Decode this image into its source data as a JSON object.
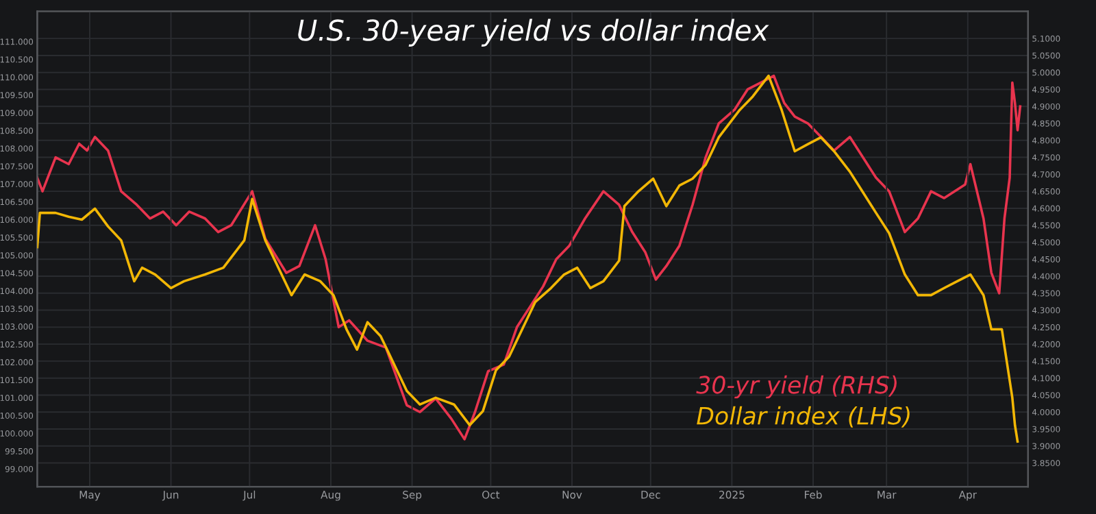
{
  "chart_data": {
    "type": "line",
    "title": "U.S. 30-year yield vs dollar index",
    "xlim": [
      "2024-04-11",
      "2025-04-24"
    ],
    "xticks": [
      {
        "value": "2024-05-01",
        "label": "May"
      },
      {
        "value": "2024-06-01",
        "label": "Jun"
      },
      {
        "value": "2024-07-01",
        "label": "Jul"
      },
      {
        "value": "2024-08-01",
        "label": "Aug"
      },
      {
        "value": "2024-09-01",
        "label": "Sep"
      },
      {
        "value": "2024-10-01",
        "label": "Oct"
      },
      {
        "value": "2024-11-01",
        "label": "Nov"
      },
      {
        "value": "2024-12-01",
        "label": "Dec"
      },
      {
        "value": "2025-01-01",
        "label": "2025"
      },
      {
        "value": "2025-02-01",
        "label": "Feb"
      },
      {
        "value": "2025-03-01",
        "label": "Mar"
      },
      {
        "value": "2025-04-01",
        "label": "Apr"
      }
    ],
    "ylim": [
      98.5,
      111.85
    ],
    "yticks": [
      {
        "value": 99,
        "label": "99.000"
      },
      {
        "value": 99.5,
        "label": "99.500"
      },
      {
        "value": 100,
        "label": "100.000"
      },
      {
        "value": 100.5,
        "label": "100.500"
      },
      {
        "value": 101,
        "label": "101.000"
      },
      {
        "value": 101.5,
        "label": "101.500"
      },
      {
        "value": 102,
        "label": "102.000"
      },
      {
        "value": 102.5,
        "label": "102.500"
      },
      {
        "value": 103,
        "label": "103.000"
      },
      {
        "value": 103.5,
        "label": "103.500"
      },
      {
        "value": 104,
        "label": "104.000"
      },
      {
        "value": 104.5,
        "label": "104.500"
      },
      {
        "value": 105,
        "label": "105.000"
      },
      {
        "value": 105.5,
        "label": "105.500"
      },
      {
        "value": 106,
        "label": "106.000"
      },
      {
        "value": 106.5,
        "label": "106.500"
      },
      {
        "value": 107,
        "label": "107.000"
      },
      {
        "value": 107.5,
        "label": "107.500"
      },
      {
        "value": 108,
        "label": "108.000"
      },
      {
        "value": 108.5,
        "label": "108.500"
      },
      {
        "value": 109,
        "label": "109.000"
      },
      {
        "value": 109.5,
        "label": "109.500"
      },
      {
        "value": 110,
        "label": "110.000"
      },
      {
        "value": 110.5,
        "label": "110.500"
      },
      {
        "value": 111,
        "label": "111.000"
      }
    ],
    "y2lim": [
      3.78,
      5.18
    ],
    "y2ticks": [
      {
        "value": 3.85,
        "label": "3.8500"
      },
      {
        "value": 3.9,
        "label": "3.9000"
      },
      {
        "value": 3.95,
        "label": "3.9500"
      },
      {
        "value": 4.0,
        "label": "4.0000"
      },
      {
        "value": 4.05,
        "label": "4.0500"
      },
      {
        "value": 4.1,
        "label": "4.1000"
      },
      {
        "value": 4.15,
        "label": "4.1500"
      },
      {
        "value": 4.2,
        "label": "4.2000"
      },
      {
        "value": 4.25,
        "label": "4.2500"
      },
      {
        "value": 4.3,
        "label": "4.3000"
      },
      {
        "value": 4.35,
        "label": "4.3500"
      },
      {
        "value": 4.4,
        "label": "4.4000"
      },
      {
        "value": 4.45,
        "label": "4.4500"
      },
      {
        "value": 4.5,
        "label": "4.5000"
      },
      {
        "value": 4.55,
        "label": "4.5500"
      },
      {
        "value": 4.6,
        "label": "4.6000"
      },
      {
        "value": 4.65,
        "label": "4.6500"
      },
      {
        "value": 4.7,
        "label": "4.7000"
      },
      {
        "value": 4.75,
        "label": "4.7500"
      },
      {
        "value": 4.8,
        "label": "4.8000"
      },
      {
        "value": 4.85,
        "label": "4.8500"
      },
      {
        "value": 4.9,
        "label": "4.9000"
      },
      {
        "value": 4.95,
        "label": "4.9500"
      },
      {
        "value": 5.0,
        "label": "5.0000"
      },
      {
        "value": 5.05,
        "label": "5.0500"
      },
      {
        "value": 5.1,
        "label": "5.1000"
      }
    ],
    "grid": true,
    "line_style": "solid",
    "marker": "none",
    "series": [
      {
        "name": "Dollar index (LHS)",
        "color": "#f2b705",
        "x": [
          "2024-04-11",
          "2024-04-12",
          "2024-04-18",
          "2024-04-23",
          "2024-04-28",
          "2024-05-03",
          "2024-05-08",
          "2024-05-13",
          "2024-05-18",
          "2024-05-21",
          "2024-05-26",
          "2024-06-01",
          "2024-06-06",
          "2024-06-14",
          "2024-06-21",
          "2024-06-29",
          "2024-07-02",
          "2024-07-07",
          "2024-07-12",
          "2024-07-17",
          "2024-07-22",
          "2024-07-28",
          "2024-08-02",
          "2024-08-07",
          "2024-08-11",
          "2024-08-15",
          "2024-08-20",
          "2024-08-25",
          "2024-08-30",
          "2024-09-04",
          "2024-09-10",
          "2024-09-17",
          "2024-09-23",
          "2024-09-28",
          "2024-10-03",
          "2024-10-08",
          "2024-10-13",
          "2024-10-18",
          "2024-10-24",
          "2024-10-29",
          "2024-11-03",
          "2024-11-08",
          "2024-11-13",
          "2024-11-19",
          "2024-11-21",
          "2024-11-26",
          "2024-12-02",
          "2024-12-07",
          "2024-12-12",
          "2024-12-17",
          "2024-12-22",
          "2024-12-27",
          "2025-01-04",
          "2025-01-09",
          "2025-01-15",
          "2025-01-20",
          "2025-01-25",
          "2025-01-30",
          "2025-02-04",
          "2025-02-09",
          "2025-02-15",
          "2025-02-20",
          "2025-02-25",
          "2025-03-02",
          "2025-03-08",
          "2025-03-13",
          "2025-03-18",
          "2025-03-23",
          "2025-03-28",
          "2025-04-02",
          "2025-04-07",
          "2025-04-10",
          "2025-04-14",
          "2025-04-16",
          "2025-04-18",
          "2025-04-19",
          "2025-04-20"
        ],
        "values": [
          105.23,
          106.19,
          106.19,
          106.08,
          106.0,
          106.31,
          105.81,
          105.42,
          104.27,
          104.65,
          104.46,
          104.08,
          104.27,
          104.46,
          104.65,
          105.42,
          106.58,
          105.42,
          104.65,
          103.88,
          104.46,
          104.27,
          103.88,
          102.92,
          102.35,
          103.12,
          102.73,
          101.96,
          101.19,
          100.81,
          101.0,
          100.81,
          100.23,
          100.62,
          101.77,
          102.15,
          102.92,
          103.69,
          104.08,
          104.46,
          104.65,
          104.08,
          104.27,
          104.85,
          106.38,
          106.77,
          107.15,
          106.38,
          106.96,
          107.15,
          107.54,
          108.31,
          109.08,
          109.46,
          110.04,
          109.08,
          107.92,
          108.12,
          108.31,
          107.92,
          107.35,
          106.77,
          106.19,
          105.62,
          104.46,
          103.88,
          103.88,
          104.08,
          104.27,
          104.46,
          103.88,
          102.92,
          102.92,
          101.96,
          101.0,
          100.23,
          99.77
        ]
      },
      {
        "name": "30-yr yield (RHS)",
        "color": "#e8344e",
        "axis": "y2",
        "x": [
          "2024-04-11",
          "2024-04-13",
          "2024-04-18",
          "2024-04-23",
          "2024-04-27",
          "2024-04-30",
          "2024-05-03",
          "2024-05-08",
          "2024-05-13",
          "2024-05-19",
          "2024-05-24",
          "2024-05-29",
          "2024-06-03",
          "2024-06-08",
          "2024-06-14",
          "2024-06-19",
          "2024-06-24",
          "2024-07-02",
          "2024-07-07",
          "2024-07-15",
          "2024-07-20",
          "2024-07-26",
          "2024-07-30",
          "2024-08-04",
          "2024-08-08",
          "2024-08-15",
          "2024-08-22",
          "2024-08-30",
          "2024-09-04",
          "2024-09-10",
          "2024-09-16",
          "2024-09-21",
          "2024-09-25",
          "2024-09-30",
          "2024-10-06",
          "2024-10-11",
          "2024-10-16",
          "2024-10-21",
          "2024-10-26",
          "2024-10-31",
          "2024-11-06",
          "2024-11-13",
          "2024-11-19",
          "2024-11-24",
          "2024-11-29",
          "2024-12-03",
          "2024-12-07",
          "2024-12-12",
          "2024-12-17",
          "2024-12-22",
          "2024-12-27",
          "2025-01-02",
          "2025-01-07",
          "2025-01-12",
          "2025-01-17",
          "2025-01-21",
          "2025-01-25",
          "2025-01-30",
          "2025-02-04",
          "2025-02-09",
          "2025-02-15",
          "2025-02-20",
          "2025-02-25",
          "2025-03-02",
          "2025-03-08",
          "2025-03-13",
          "2025-03-18",
          "2025-03-23",
          "2025-03-31",
          "2025-04-02",
          "2025-04-07",
          "2025-04-10",
          "2025-04-13",
          "2025-04-15",
          "2025-04-17",
          "2025-04-18",
          "2025-04-19",
          "2025-04-20",
          "2025-04-21"
        ],
        "values": [
          4.69,
          4.65,
          4.75,
          4.73,
          4.79,
          4.77,
          4.81,
          4.77,
          4.65,
          4.61,
          4.57,
          4.59,
          4.55,
          4.59,
          4.57,
          4.53,
          4.55,
          4.65,
          4.51,
          4.41,
          4.43,
          4.55,
          4.45,
          4.25,
          4.27,
          4.21,
          4.19,
          4.02,
          4.0,
          4.04,
          3.98,
          3.92,
          4.0,
          4.12,
          4.14,
          4.25,
          4.31,
          4.37,
          4.45,
          4.49,
          4.57,
          4.65,
          4.61,
          4.53,
          4.47,
          4.39,
          4.43,
          4.49,
          4.61,
          4.75,
          4.85,
          4.89,
          4.95,
          4.97,
          4.99,
          4.91,
          4.87,
          4.85,
          4.81,
          4.77,
          4.81,
          4.75,
          4.69,
          4.65,
          4.53,
          4.57,
          4.65,
          4.63,
          4.67,
          4.73,
          4.57,
          4.41,
          4.35,
          4.57,
          4.69,
          4.97,
          4.91,
          4.83,
          4.9
        ]
      }
    ]
  }
}
